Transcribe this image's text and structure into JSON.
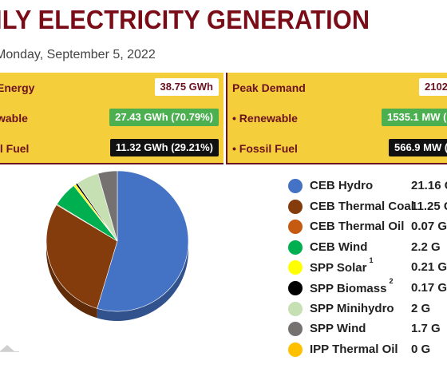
{
  "header": {
    "title": "ILY ELECTRICITY GENERATION",
    "date": "Monday, September 5, 2022"
  },
  "energy_panel": {
    "rows": [
      {
        "label": "Energy",
        "value": "38.75 GWh",
        "style": "white"
      },
      {
        "label": "wable",
        "value": "27.43 GWh (70.79%)",
        "style": "green"
      },
      {
        "label": "il Fuel",
        "value": "11.32 GWh (29.21%)",
        "style": "black"
      }
    ]
  },
  "demand_panel": {
    "rows": [
      {
        "label": "Peak Demand",
        "value": "2102",
        "style": "white"
      },
      {
        "label": "• Renewable",
        "value": "1535.1 MW (",
        "style": "green"
      },
      {
        "label": "• Fossil Fuel",
        "value": "566.9 MW (2",
        "style": "black"
      }
    ]
  },
  "chart_data": {
    "type": "pie",
    "slices": [
      {
        "name": "CEB Hydro",
        "display": "21.16 G",
        "value": 21.16,
        "color": "#4472c4"
      },
      {
        "name": "CEB Thermal Coal",
        "display": "11.25 G",
        "value": 11.25,
        "color": "#843c0c"
      },
      {
        "name": "CEB Thermal Oil",
        "display": "0.07 G",
        "value": 0.07,
        "color": "#c55a11"
      },
      {
        "name": "CEB Wind",
        "display": "2.2 G",
        "value": 2.2,
        "color": "#00b050"
      },
      {
        "name": "SPP Solar",
        "sup": "1",
        "display": "0.21 G",
        "value": 0.21,
        "color": "#ffff00"
      },
      {
        "name": "SPP Biomass",
        "sup": "2",
        "display": "0.17 G",
        "value": 0.17,
        "color": "#000000"
      },
      {
        "name": "SPP Minihydro",
        "display": "2 G",
        "value": 2.0,
        "color": "#c6e0b4"
      },
      {
        "name": "SPP Wind",
        "display": "1.7 G",
        "value": 1.7,
        "color": "#767171"
      },
      {
        "name": "IPP Thermal Oil",
        "display": "0 G",
        "value": 0,
        "color": "#ffc000"
      }
    ]
  }
}
